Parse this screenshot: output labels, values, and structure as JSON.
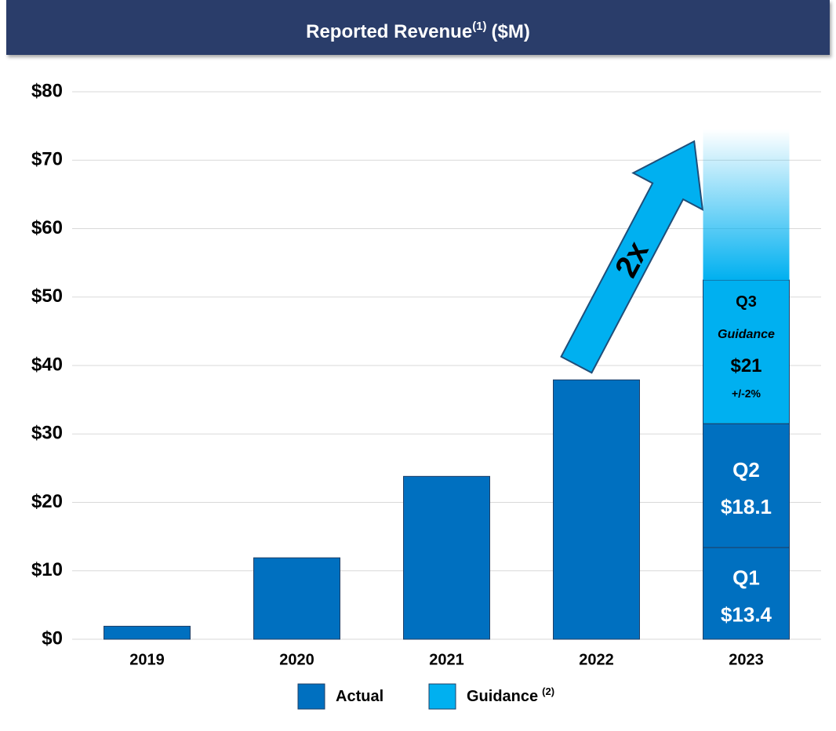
{
  "chart_data": {
    "type": "bar",
    "title": "Reported Revenue",
    "title_note": "(1)",
    "title_unit": "($M)",
    "categories": [
      "2019",
      "2020",
      "2021",
      "2022",
      "2023"
    ],
    "series": [
      {
        "name": "Actual",
        "color": "#0070c0",
        "values": [
          1.9,
          11.9,
          23.8,
          37.9,
          null
        ]
      }
    ],
    "segments": [
      {
        "category": 4,
        "legend": 0,
        "label": "Q1",
        "value": 13.4,
        "value_label": "$13.4"
      },
      {
        "category": 4,
        "legend": 0,
        "label": "Q2",
        "value": 18.1,
        "value_label": "$18.1"
      },
      {
        "category": 4,
        "legend": 1,
        "label": "Q3",
        "note": "Guidance",
        "value": 21,
        "value_label": "$21",
        "range": "+/-2%"
      }
    ],
    "legend": [
      {
        "name": "Actual",
        "color": "#0070c0"
      },
      {
        "name": "Guidance",
        "note": "(2)",
        "color": "#00b0f0"
      }
    ],
    "annotation": "2x",
    "ylim": [
      0,
      80
    ],
    "yticks": [
      {
        "value": 0,
        "label": "$0"
      },
      {
        "value": 10,
        "label": "$10"
      },
      {
        "value": 20,
        "label": "$20"
      },
      {
        "value": 30,
        "label": "$30"
      },
      {
        "value": 40,
        "label": "$40"
      },
      {
        "value": 50,
        "label": "$50"
      },
      {
        "value": 60,
        "label": "$60"
      },
      {
        "value": 70,
        "label": "$70"
      },
      {
        "value": 80,
        "label": "$80"
      }
    ],
    "grid": true
  }
}
